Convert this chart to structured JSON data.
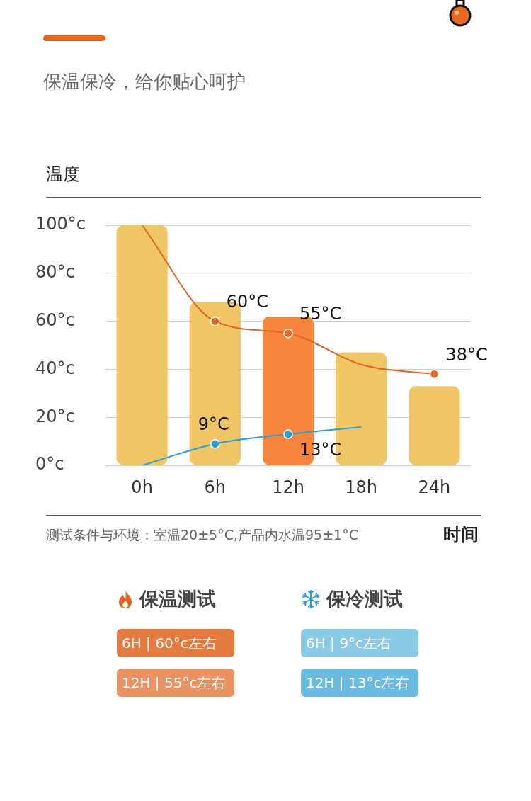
{
  "chart_data": {
    "type": "bar",
    "subtitle": "保温保冷，给你贴心呵护",
    "ylabel": "温度",
    "xlabel": "时间",
    "categories": [
      "0h",
      "6h",
      "12h",
      "18h",
      "24h"
    ],
    "series": [
      {
        "colors": [
          "#f0c566",
          "#f0c566",
          "#f7843c",
          "#f0c566",
          "#f0c566"
        ],
        "values": [
          100,
          68,
          62,
          47,
          33
        ]
      },
      {
        "type": "line",
        "name": "保温测试",
        "color": "#e2641f",
        "values": [
          100,
          60,
          55,
          42,
          38
        ],
        "value_labels": [
          null,
          "60°C",
          "55°C",
          null,
          "38°C"
        ]
      },
      {
        "type": "line",
        "name": "保冷测试",
        "color": "#2a9fd6",
        "values": [
          0,
          9,
          13,
          16,
          null
        ],
        "value_labels": [
          null,
          "9°C",
          "13°C",
          null,
          null
        ]
      }
    ],
    "ylim": [
      0,
      100
    ],
    "yticks": [
      {
        "value": 0,
        "label": "0°c"
      },
      {
        "value": 20,
        "label": "20°c"
      },
      {
        "value": 40,
        "label": "40°c"
      },
      {
        "value": 60,
        "label": "60°c"
      },
      {
        "value": 80,
        "label": "80°c"
      },
      {
        "value": 100,
        "label": "100°c"
      }
    ],
    "grid": "y",
    "legend": "bottom",
    "marker": "circle",
    "line_style": "solid",
    "annotations": [
      "测试条件与环境：室温20±5°C,产品内水温95±1°C",
      "6H | 60°c左右",
      "12H | 55°c左右",
      "6H | 9°c左右",
      "12H | 13°c左右"
    ]
  }
}
